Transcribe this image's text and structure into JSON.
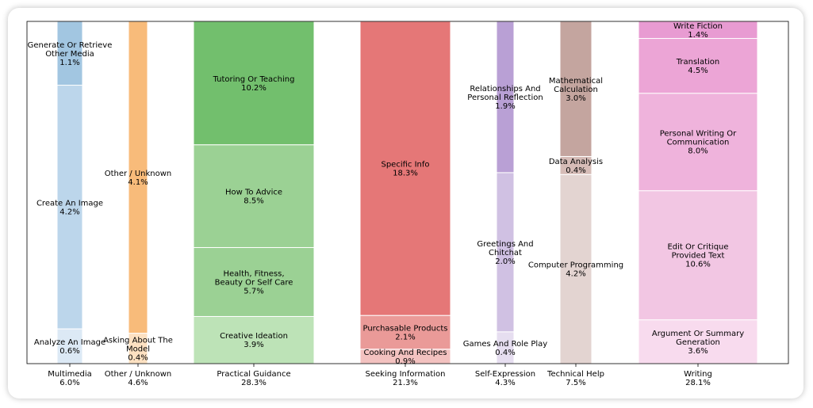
{
  "chart_data": {
    "type": "mosaic",
    "ylim": [
      0,
      1
    ],
    "grid": false,
    "categories": [
      {
        "name": "Multimedia",
        "total": "6.0%",
        "total_value": 6.0,
        "segments": [
          {
            "label": "Analyze An Image",
            "value": 0.6,
            "pct": "0.6%",
            "color": "#dce9f5"
          },
          {
            "label": "Create An Image",
            "value": 4.2,
            "pct": "4.2%",
            "color": "#bcd6eb"
          },
          {
            "label": "Generate Or Retrieve Other Media",
            "value": 1.1,
            "pct": "1.1%",
            "color": "#a2c6e1"
          }
        ]
      },
      {
        "name": "Other / Unknown",
        "total": "4.6%",
        "total_value": 4.6,
        "segments": [
          {
            "label": "Asking About The Model",
            "value": 0.4,
            "pct": "0.4%",
            "color": "#fde1c2"
          },
          {
            "label": "Other / Unknown",
            "value": 4.1,
            "pct": "4.1%",
            "color": "#f8bb7a"
          }
        ]
      },
      {
        "name": "Practical Guidance",
        "total": "28.3%",
        "total_value": 28.3,
        "segments": [
          {
            "label": "Creative Ideation",
            "value": 3.9,
            "pct": "3.9%",
            "color": "#bde3b7"
          },
          {
            "label": "Health, Fitness, Beauty Or Self Care",
            "value": 5.7,
            "pct": "5.7%",
            "color": "#9bd194"
          },
          {
            "label": "How To Advice",
            "value": 8.5,
            "pct": "8.5%",
            "color": "#9bd194"
          },
          {
            "label": "Tutoring Or Teaching",
            "value": 10.2,
            "pct": "10.2%",
            "color": "#72bf6d"
          }
        ]
      },
      {
        "name": "Seeking Information",
        "total": "21.3%",
        "total_value": 21.3,
        "segments": [
          {
            "label": "Cooking And Recipes",
            "value": 0.9,
            "pct": "0.9%",
            "color": "#f3c2c0"
          },
          {
            "label": "Purchasable Products",
            "value": 2.1,
            "pct": "2.1%",
            "color": "#ea9a98"
          },
          {
            "label": "Specific Info",
            "value": 18.3,
            "pct": "18.3%",
            "color": "#e57777"
          }
        ]
      },
      {
        "name": "Self-Expression",
        "total": "4.3%",
        "total_value": 4.3,
        "segments": [
          {
            "label": "Games And Role Play",
            "value": 0.4,
            "pct": "0.4%",
            "color": "#e6def0"
          },
          {
            "label": "Greetings And Chitchat",
            "value": 2.0,
            "pct": "2.0%",
            "color": "#d0c1e3"
          },
          {
            "label": "Relationships And Personal Reflection",
            "value": 1.9,
            "pct": "1.9%",
            "color": "#b9a0d5"
          }
        ]
      },
      {
        "name": "Technical Help",
        "total": "7.5%",
        "total_value": 7.5,
        "segments": [
          {
            "label": "Computer Programming",
            "value": 4.2,
            "pct": "4.2%",
            "color": "#e3d4d1"
          },
          {
            "label": "Data Analysis",
            "value": 0.4,
            "pct": "0.4%",
            "color": "#d6bcb7"
          },
          {
            "label": "Mathematical Calculation",
            "value": 3.0,
            "pct": "3.0%",
            "color": "#c4a59f"
          }
        ]
      },
      {
        "name": "Writing",
        "total": "28.1%",
        "total_value": 28.1,
        "segments": [
          {
            "label": "Argument Or Summary Generation",
            "value": 3.6,
            "pct": "3.6%",
            "color": "#f8dbee"
          },
          {
            "label": "Edit Or Critique Provided Text",
            "value": 10.6,
            "pct": "10.6%",
            "color": "#f2c6e3"
          },
          {
            "label": "Personal Writing Or Communication",
            "value": 8.0,
            "pct": "8.0%",
            "color": "#efb3dc"
          },
          {
            "label": "Translation",
            "value": 4.5,
            "pct": "4.5%",
            "color": "#eca5d6"
          },
          {
            "label": "Write Fiction",
            "value": 1.4,
            "pct": "1.4%",
            "color": "#e89bd2"
          }
        ]
      }
    ]
  }
}
